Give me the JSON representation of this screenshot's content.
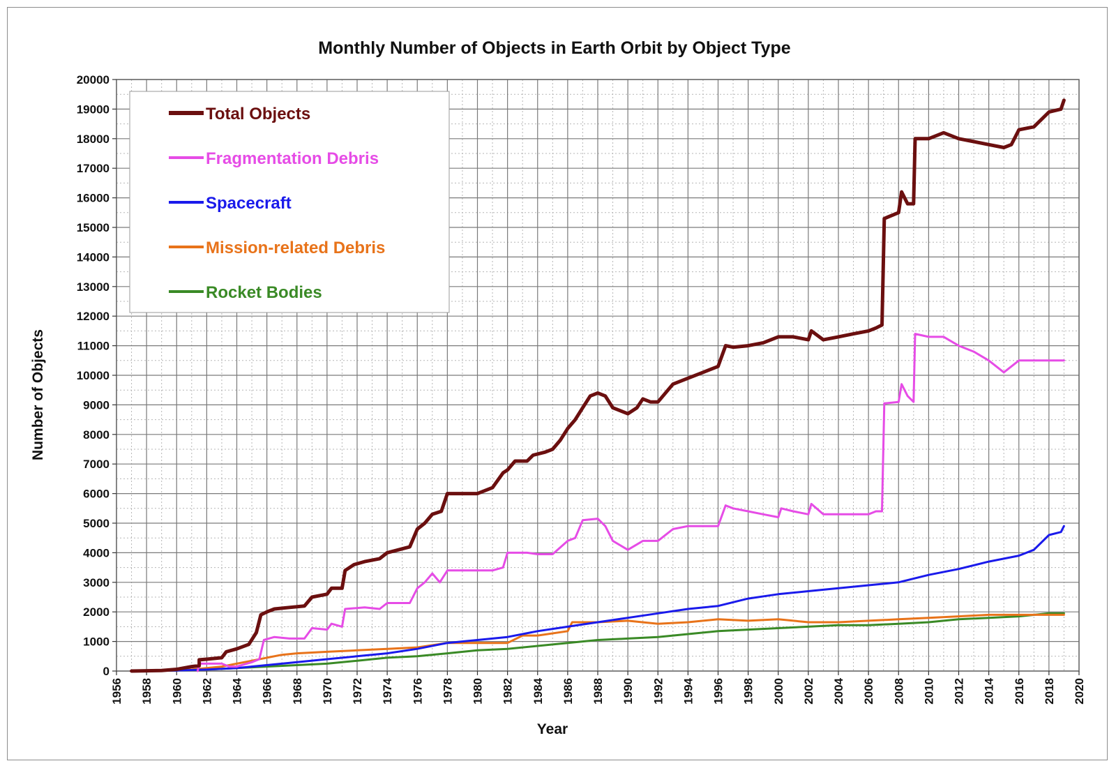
{
  "chart_data": {
    "type": "line",
    "title": "Monthly Number of Objects in Earth Orbit by Object Type",
    "xlabel": "Year",
    "ylabel": "Number of Objects",
    "xlim": [
      1956,
      2020
    ],
    "ylim": [
      0,
      20000
    ],
    "x_ticks": [
      "1956",
      "1958",
      "1960",
      "1962",
      "1964",
      "1966",
      "1968",
      "1970",
      "1972",
      "1974",
      "1976",
      "1978",
      "1980",
      "1982",
      "1984",
      "1986",
      "1988",
      "1990",
      "1992",
      "1994",
      "1996",
      "1998",
      "2000",
      "2002",
      "2004",
      "2006",
      "2008",
      "2010",
      "2012",
      "2014",
      "2016",
      "2018",
      "2020"
    ],
    "y_ticks": [
      "0",
      "1000",
      "2000",
      "3000",
      "4000",
      "5000",
      "6000",
      "7000",
      "8000",
      "9000",
      "10000",
      "11000",
      "12000",
      "13000",
      "14000",
      "15000",
      "16000",
      "17000",
      "18000",
      "19000",
      "20000"
    ],
    "grid": true,
    "legend_position": "top-left",
    "series": [
      {
        "name": "Total Objects",
        "color": "#6b0f0f",
        "stroke": 5,
        "points": [
          [
            1957,
            0
          ],
          [
            1959,
            20
          ],
          [
            1960,
            60
          ],
          [
            1961,
            150
          ],
          [
            1961.5,
            180
          ],
          [
            1961.5,
            380
          ],
          [
            1962,
            400
          ],
          [
            1963,
            450
          ],
          [
            1963.3,
            650
          ],
          [
            1964,
            750
          ],
          [
            1964.8,
            900
          ],
          [
            1965.3,
            1300
          ],
          [
            1965.6,
            1900
          ],
          [
            1966,
            2000
          ],
          [
            1966.5,
            2100
          ],
          [
            1967.5,
            2150
          ],
          [
            1968.5,
            2200
          ],
          [
            1969,
            2500
          ],
          [
            1970,
            2600
          ],
          [
            1970.3,
            2800
          ],
          [
            1971,
            2800
          ],
          [
            1971.2,
            3400
          ],
          [
            1971.8,
            3600
          ],
          [
            1972.5,
            3700
          ],
          [
            1973.5,
            3800
          ],
          [
            1974,
            4000
          ],
          [
            1975.5,
            4200
          ],
          [
            1976,
            4800
          ],
          [
            1976.5,
            5000
          ],
          [
            1977,
            5300
          ],
          [
            1977.6,
            5400
          ],
          [
            1978,
            6000
          ],
          [
            1979,
            6000
          ],
          [
            1980,
            6000
          ],
          [
            1981,
            6200
          ],
          [
            1981.7,
            6700
          ],
          [
            1982,
            6800
          ],
          [
            1982.5,
            7100
          ],
          [
            1983.3,
            7100
          ],
          [
            1983.7,
            7300
          ],
          [
            1984.5,
            7400
          ],
          [
            1985,
            7500
          ],
          [
            1985.5,
            7800
          ],
          [
            1986,
            8200
          ],
          [
            1986.5,
            8500
          ],
          [
            1987,
            8900
          ],
          [
            1987.5,
            9300
          ],
          [
            1988,
            9400
          ],
          [
            1988.5,
            9300
          ],
          [
            1989,
            8900
          ],
          [
            1990,
            8700
          ],
          [
            1990.6,
            8900
          ],
          [
            1991,
            9200
          ],
          [
            1991.5,
            9100
          ],
          [
            1992,
            9100
          ],
          [
            1993,
            9700
          ],
          [
            1994,
            9900
          ],
          [
            1995,
            10100
          ],
          [
            1996,
            10300
          ],
          [
            1996.5,
            11000
          ],
          [
            1997,
            10950
          ],
          [
            1998,
            11000
          ],
          [
            1999,
            11100
          ],
          [
            2000,
            11300
          ],
          [
            2001,
            11300
          ],
          [
            2002,
            11200
          ],
          [
            2002.2,
            11500
          ],
          [
            2003,
            11200
          ],
          [
            2004,
            11300
          ],
          [
            2005,
            11400
          ],
          [
            2006,
            11500
          ],
          [
            2006.5,
            11600
          ],
          [
            2006.9,
            11700
          ],
          [
            2007.05,
            15300
          ],
          [
            2008,
            15500
          ],
          [
            2008.2,
            16200
          ],
          [
            2008.6,
            15800
          ],
          [
            2009,
            15800
          ],
          [
            2009.1,
            18000
          ],
          [
            2010,
            18000
          ],
          [
            2010.5,
            18100
          ],
          [
            2011,
            18200
          ],
          [
            2012,
            18000
          ],
          [
            2013,
            17900
          ],
          [
            2014,
            17800
          ],
          [
            2015,
            17700
          ],
          [
            2015.5,
            17800
          ],
          [
            2016,
            18300
          ],
          [
            2017,
            18400
          ],
          [
            2018,
            18900
          ],
          [
            2018.8,
            19000
          ],
          [
            2019,
            19300
          ]
        ]
      },
      {
        "name": "Fragmentation Debris",
        "color": "#e64ce6",
        "stroke": 3,
        "points": [
          [
            1961.4,
            0
          ],
          [
            1961.5,
            250
          ],
          [
            1963,
            250
          ],
          [
            1963.5,
            150
          ],
          [
            1964,
            150
          ],
          [
            1965,
            300
          ],
          [
            1965.5,
            400
          ],
          [
            1965.8,
            1050
          ],
          [
            1966.5,
            1150
          ],
          [
            1967.5,
            1100
          ],
          [
            1968.5,
            1100
          ],
          [
            1969,
            1450
          ],
          [
            1970,
            1400
          ],
          [
            1970.3,
            1600
          ],
          [
            1971,
            1500
          ],
          [
            1971.2,
            2100
          ],
          [
            1972.5,
            2150
          ],
          [
            1973.5,
            2100
          ],
          [
            1974,
            2300
          ],
          [
            1975.5,
            2300
          ],
          [
            1976,
            2800
          ],
          [
            1976.5,
            3000
          ],
          [
            1977,
            3300
          ],
          [
            1977.5,
            3000
          ],
          [
            1978,
            3400
          ],
          [
            1979,
            3400
          ],
          [
            1980,
            3400
          ],
          [
            1981,
            3400
          ],
          [
            1981.7,
            3500
          ],
          [
            1982,
            4000
          ],
          [
            1982.5,
            4000
          ],
          [
            1983.3,
            4000
          ],
          [
            1984,
            3950
          ],
          [
            1985,
            3950
          ],
          [
            1986,
            4400
          ],
          [
            1986.5,
            4500
          ],
          [
            1987,
            5100
          ],
          [
            1988,
            5150
          ],
          [
            1988.5,
            4900
          ],
          [
            1989,
            4400
          ],
          [
            1990,
            4100
          ],
          [
            1991,
            4400
          ],
          [
            1992,
            4400
          ],
          [
            1993,
            4800
          ],
          [
            1994,
            4900
          ],
          [
            1995,
            4900
          ],
          [
            1996,
            4900
          ],
          [
            1996.5,
            5600
          ],
          [
            1997,
            5500
          ],
          [
            1998,
            5400
          ],
          [
            1999,
            5300
          ],
          [
            2000,
            5200
          ],
          [
            2000.2,
            5500
          ],
          [
            2001,
            5400
          ],
          [
            2002,
            5300
          ],
          [
            2002.2,
            5650
          ],
          [
            2003,
            5300
          ],
          [
            2004,
            5300
          ],
          [
            2005,
            5300
          ],
          [
            2006,
            5300
          ],
          [
            2006.5,
            5400
          ],
          [
            2006.9,
            5400
          ],
          [
            2007.05,
            9050
          ],
          [
            2008,
            9100
          ],
          [
            2008.2,
            9700
          ],
          [
            2008.6,
            9300
          ],
          [
            2009,
            9100
          ],
          [
            2009.1,
            11400
          ],
          [
            2010,
            11300
          ],
          [
            2010.5,
            11300
          ],
          [
            2011,
            11300
          ],
          [
            2012,
            11000
          ],
          [
            2013,
            10800
          ],
          [
            2014,
            10500
          ],
          [
            2015,
            10100
          ],
          [
            2015.5,
            10300
          ],
          [
            2016,
            10500
          ],
          [
            2017,
            10500
          ],
          [
            2018,
            10500
          ],
          [
            2019,
            10500
          ]
        ]
      },
      {
        "name": "Spacecraft",
        "color": "#1a1aeb",
        "stroke": 3,
        "points": [
          [
            1957,
            0
          ],
          [
            1960,
            20
          ],
          [
            1962,
            50
          ],
          [
            1964,
            100
          ],
          [
            1966,
            200
          ],
          [
            1968,
            300
          ],
          [
            1970,
            400
          ],
          [
            1972,
            500
          ],
          [
            1974,
            600
          ],
          [
            1976,
            750
          ],
          [
            1978,
            950
          ],
          [
            1980,
            1050
          ],
          [
            1982,
            1150
          ],
          [
            1984,
            1350
          ],
          [
            1986,
            1500
          ],
          [
            1988,
            1650
          ],
          [
            1990,
            1800
          ],
          [
            1992,
            1950
          ],
          [
            1994,
            2100
          ],
          [
            1996,
            2200
          ],
          [
            1998,
            2450
          ],
          [
            2000,
            2600
          ],
          [
            2002,
            2700
          ],
          [
            2004,
            2800
          ],
          [
            2006,
            2900
          ],
          [
            2008,
            3000
          ],
          [
            2010,
            3250
          ],
          [
            2012,
            3450
          ],
          [
            2014,
            3700
          ],
          [
            2016,
            3900
          ],
          [
            2017,
            4100
          ],
          [
            2018,
            4600
          ],
          [
            2018.8,
            4700
          ],
          [
            2019,
            4900
          ]
        ]
      },
      {
        "name": "Mission-related Debris",
        "color": "#e8731a",
        "stroke": 3,
        "points": [
          [
            1958,
            0
          ],
          [
            1961,
            50
          ],
          [
            1963,
            150
          ],
          [
            1964,
            250
          ],
          [
            1965,
            350
          ],
          [
            1966,
            450
          ],
          [
            1967,
            550
          ],
          [
            1968,
            600
          ],
          [
            1970,
            650
          ],
          [
            1972,
            700
          ],
          [
            1974,
            750
          ],
          [
            1976,
            800
          ],
          [
            1978,
            950
          ],
          [
            1980,
            950
          ],
          [
            1982,
            950
          ],
          [
            1983,
            1200
          ],
          [
            1984,
            1200
          ],
          [
            1986,
            1350
          ],
          [
            1986.3,
            1650
          ],
          [
            1988,
            1650
          ],
          [
            1990,
            1700
          ],
          [
            1992,
            1600
          ],
          [
            1994,
            1650
          ],
          [
            1996,
            1750
          ],
          [
            1998,
            1700
          ],
          [
            2000,
            1750
          ],
          [
            2002,
            1650
          ],
          [
            2004,
            1650
          ],
          [
            2006,
            1700
          ],
          [
            2008,
            1750
          ],
          [
            2010,
            1800
          ],
          [
            2012,
            1850
          ],
          [
            2014,
            1900
          ],
          [
            2016,
            1900
          ],
          [
            2018,
            1900
          ],
          [
            2019,
            1900
          ]
        ]
      },
      {
        "name": "Rocket Bodies",
        "color": "#3a8a26",
        "stroke": 3,
        "points": [
          [
            1957,
            0
          ],
          [
            1960,
            20
          ],
          [
            1962,
            50
          ],
          [
            1964,
            100
          ],
          [
            1966,
            150
          ],
          [
            1968,
            200
          ],
          [
            1970,
            250
          ],
          [
            1972,
            350
          ],
          [
            1974,
            450
          ],
          [
            1976,
            500
          ],
          [
            1978,
            600
          ],
          [
            1980,
            700
          ],
          [
            1982,
            750
          ],
          [
            1984,
            850
          ],
          [
            1986,
            950
          ],
          [
            1988,
            1050
          ],
          [
            1990,
            1100
          ],
          [
            1992,
            1150
          ],
          [
            1994,
            1250
          ],
          [
            1996,
            1350
          ],
          [
            1998,
            1400
          ],
          [
            2000,
            1450
          ],
          [
            2002,
            1500
          ],
          [
            2004,
            1550
          ],
          [
            2006,
            1550
          ],
          [
            2008,
            1600
          ],
          [
            2010,
            1650
          ],
          [
            2012,
            1750
          ],
          [
            2014,
            1800
          ],
          [
            2016,
            1850
          ],
          [
            2018,
            1950
          ],
          [
            2019,
            1950
          ]
        ]
      }
    ]
  }
}
